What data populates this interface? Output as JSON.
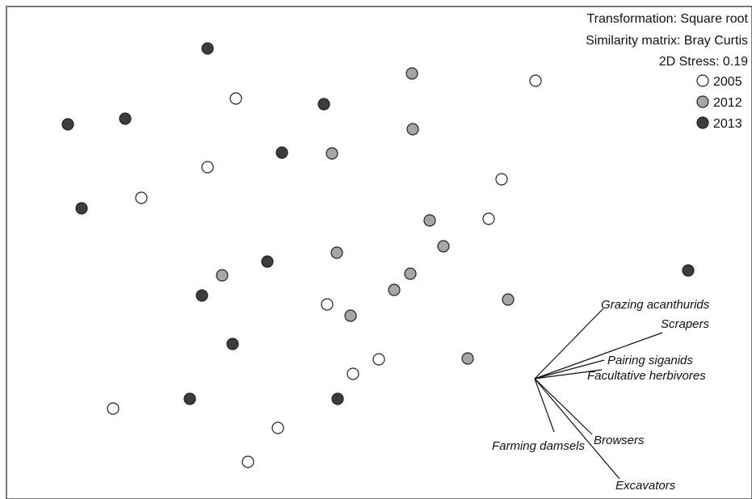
{
  "chart_data": {
    "type": "scatter",
    "title": "",
    "xlabel": "",
    "ylabel": "",
    "info_lines": [
      "Transformation: Square root",
      "Similarity matrix: Bray Curtis",
      "2D Stress: 0.19"
    ],
    "legend_position": "top-right",
    "colors": {
      "2005": "#ffffff",
      "2012": "#a6a6a6",
      "2013": "#3c3c3c"
    },
    "series": [
      {
        "name": "2005",
        "points": [
          [
            292,
            122
          ],
          [
            663,
            100
          ],
          [
            257,
            207
          ],
          [
            621,
            222
          ],
          [
            175,
            245
          ],
          [
            605,
            271
          ],
          [
            405,
            377
          ],
          [
            469,
            445
          ],
          [
            437,
            463
          ],
          [
            140,
            506
          ],
          [
            344,
            530
          ],
          [
            307,
            572
          ]
        ]
      },
      {
        "name": "2012",
        "points": [
          [
            510,
            91
          ],
          [
            511,
            160
          ],
          [
            411,
            190
          ],
          [
            532,
            273
          ],
          [
            549,
            305
          ],
          [
            417,
            313
          ],
          [
            275,
            341
          ],
          [
            508,
            339
          ],
          [
            488,
            359
          ],
          [
            629,
            371
          ],
          [
            434,
            391
          ],
          [
            579,
            444
          ]
        ]
      },
      {
        "name": "2013",
        "points": [
          [
            257,
            60
          ],
          [
            401,
            129
          ],
          [
            155,
            147
          ],
          [
            84,
            154
          ],
          [
            349,
            189
          ],
          [
            101,
            258
          ],
          [
            331,
            324
          ],
          [
            250,
            366
          ],
          [
            852,
            335
          ],
          [
            288,
            426
          ],
          [
            235,
            494
          ],
          [
            418,
            494
          ]
        ]
      }
    ],
    "vectors": {
      "origin": [
        662,
        469
      ],
      "items": [
        {
          "label": "Grazing acanthurids",
          "end": [
            747,
            382
          ]
        },
        {
          "label": "Scrapers",
          "end": [
            820,
            412
          ]
        },
        {
          "label": "Pairing siganids",
          "end": [
            748,
            446
          ]
        },
        {
          "label": "Facultative herbivores",
          "end": [
            745,
            458
          ]
        },
        {
          "label": "Browsers",
          "end": [
            733,
            538
          ]
        },
        {
          "label": "Excavators",
          "end": [
            767,
            593
          ]
        },
        {
          "label": "Farming damsels",
          "end": [
            686,
            535
          ]
        }
      ]
    }
  }
}
